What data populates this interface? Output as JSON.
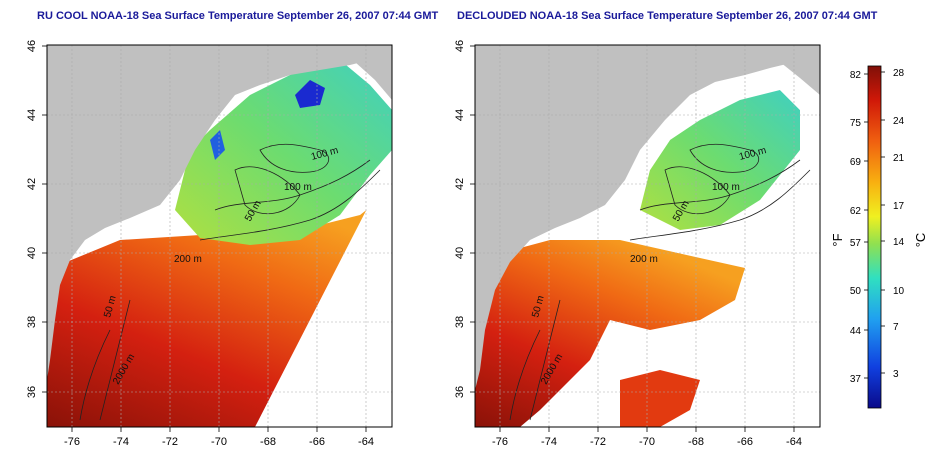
{
  "panels": [
    {
      "title": "RU COOL NOAA-18 Sea Surface Temperature September 26, 2007 07:44 GMT",
      "contour_labels": [
        "100 m",
        "100 m",
        "50 m",
        "200 m",
        "50 m",
        "2000 m"
      ]
    },
    {
      "title": "DECLOUDED NOAA-18 Sea Surface Temperature September 26, 2007 07:44 GMT",
      "contour_labels": [
        "100 m",
        "100 m",
        "50 m",
        "200 m",
        "50 m",
        "2000 m"
      ]
    }
  ],
  "x_ticks": [
    "-76",
    "-74",
    "-72",
    "-70",
    "-68",
    "-66",
    "-64"
  ],
  "y_ticks": [
    "36",
    "38",
    "40",
    "42",
    "44",
    "46"
  ],
  "colorbar": {
    "unit_f": "°F",
    "unit_c": "°C",
    "f_ticks": [
      "82",
      "75",
      "69",
      "62",
      "57",
      "50",
      "44",
      "37"
    ],
    "c_ticks": [
      "28",
      "24",
      "21",
      "17",
      "14",
      "10",
      "7",
      "3"
    ],
    "colors": [
      "#0a0a8a",
      "#1040e0",
      "#20a0f0",
      "#30e0c0",
      "#90e050",
      "#f0f020",
      "#f8b010",
      "#f06010",
      "#d01808",
      "#801008"
    ]
  },
  "colors": {
    "land": "#c0c0c0",
    "title": "#1a1a9a",
    "frame": "#000000"
  }
}
